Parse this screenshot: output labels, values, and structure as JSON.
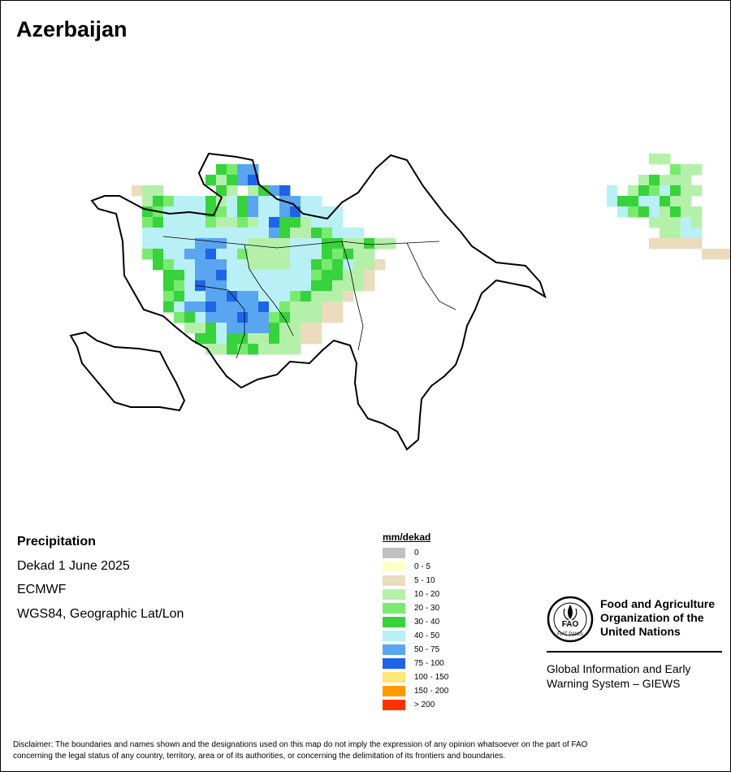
{
  "title": "Azerbaijan",
  "info": {
    "variable": "Precipitation",
    "period": "Dekad 1 June 2025",
    "source": "ECMWF",
    "projection": "WGS84, Geographic Lat/Lon"
  },
  "legend": {
    "unit": "mm/dekad",
    "classes": [
      {
        "label": "0",
        "color": "#c0c0c0"
      },
      {
        "label": "0 - 5",
        "color": "#ffffc8"
      },
      {
        "label": "5 - 10",
        "color": "#ebdcbe"
      },
      {
        "label": "10 - 20",
        "color": "#b4f0aa"
      },
      {
        "label": "20 - 30",
        "color": "#78eb6e"
      },
      {
        "label": "30 - 40",
        "color": "#37d23c"
      },
      {
        "label": "40 - 50",
        "color": "#b9f0f5"
      },
      {
        "label": "50 - 75",
        "color": "#5aa5f0"
      },
      {
        "label": "75 - 100",
        "color": "#1e64e6"
      },
      {
        "label": "100 - 150",
        "color": "#ffe678"
      },
      {
        "label": "150 - 200",
        "color": "#ff9b00"
      },
      {
        "label": "> 200",
        "color": "#ff3200"
      }
    ]
  },
  "organization": {
    "name_line1": "Food and Agriculture",
    "name_line2": "Organization of the",
    "name_line3": "United Nations",
    "logo_letters": "FAO",
    "logo_motto": "FIAT PANIS",
    "system_line1": "Global Information and Early",
    "system_line2": "Warning System – GIEWS"
  },
  "disclaimer_line1": "Disclaimer: The boundaries and names shown and the designations used on this map do not imply the expression of any opinion whatsoever on the part of FAO",
  "disclaimer_line2": "concerning the legal status of any country, territory, area or of its authorities, or concerning the delimitation of its frontiers and boundaries.",
  "grid": {
    "rows": [
      "......................................................TT........",
      ".............GGBB.......................................GTT......",
      "............GTGBB....................................TGTTT......",
      ".....RTT.....GT.TGBB..............................L.TGGLGTT.....",
      "......TGGLLLGTLGBLLBBLL...........................LGGLLGTT......",
      "......GGLLLLGGLGBLLBBLLLL..........................LGGLTGTT.....",
      "......GGLLLLGTTGTLBGGTLLL.............................TTTLT.....",
      "......LLLLLLLLLLLLBGTTGGLLL............................TTLL.....",
      "......LLLLLBBBLLTTTTLLLGGTTGTT........................RRRRR.....",
      "......GGLLBBBLLGTTTTLLLGGGTT...............................RRRR",
      ".......GGLLBBBLLTTTTLLGGGLTTR...................................",
      "........GGLBBBLLLLLLLLGGGTTR....................................",
      "........GGLBBBLLLLLLLLGGTTTR....................................",
      "........GGLLBBBBBLLLGGTTTR......................................",
      "........GLBBBBBBBBLGTTTRR.......................................",
      ".........GGLBBBBBBGGTTTRR.......................................",
      "..........TTGLBBBBGTTRR.........................................",
      "...........GGLGGTTGTTRR.........................................",
      "............TTGGGTTTT...........................................",
      "................................................................"
    ]
  }
}
